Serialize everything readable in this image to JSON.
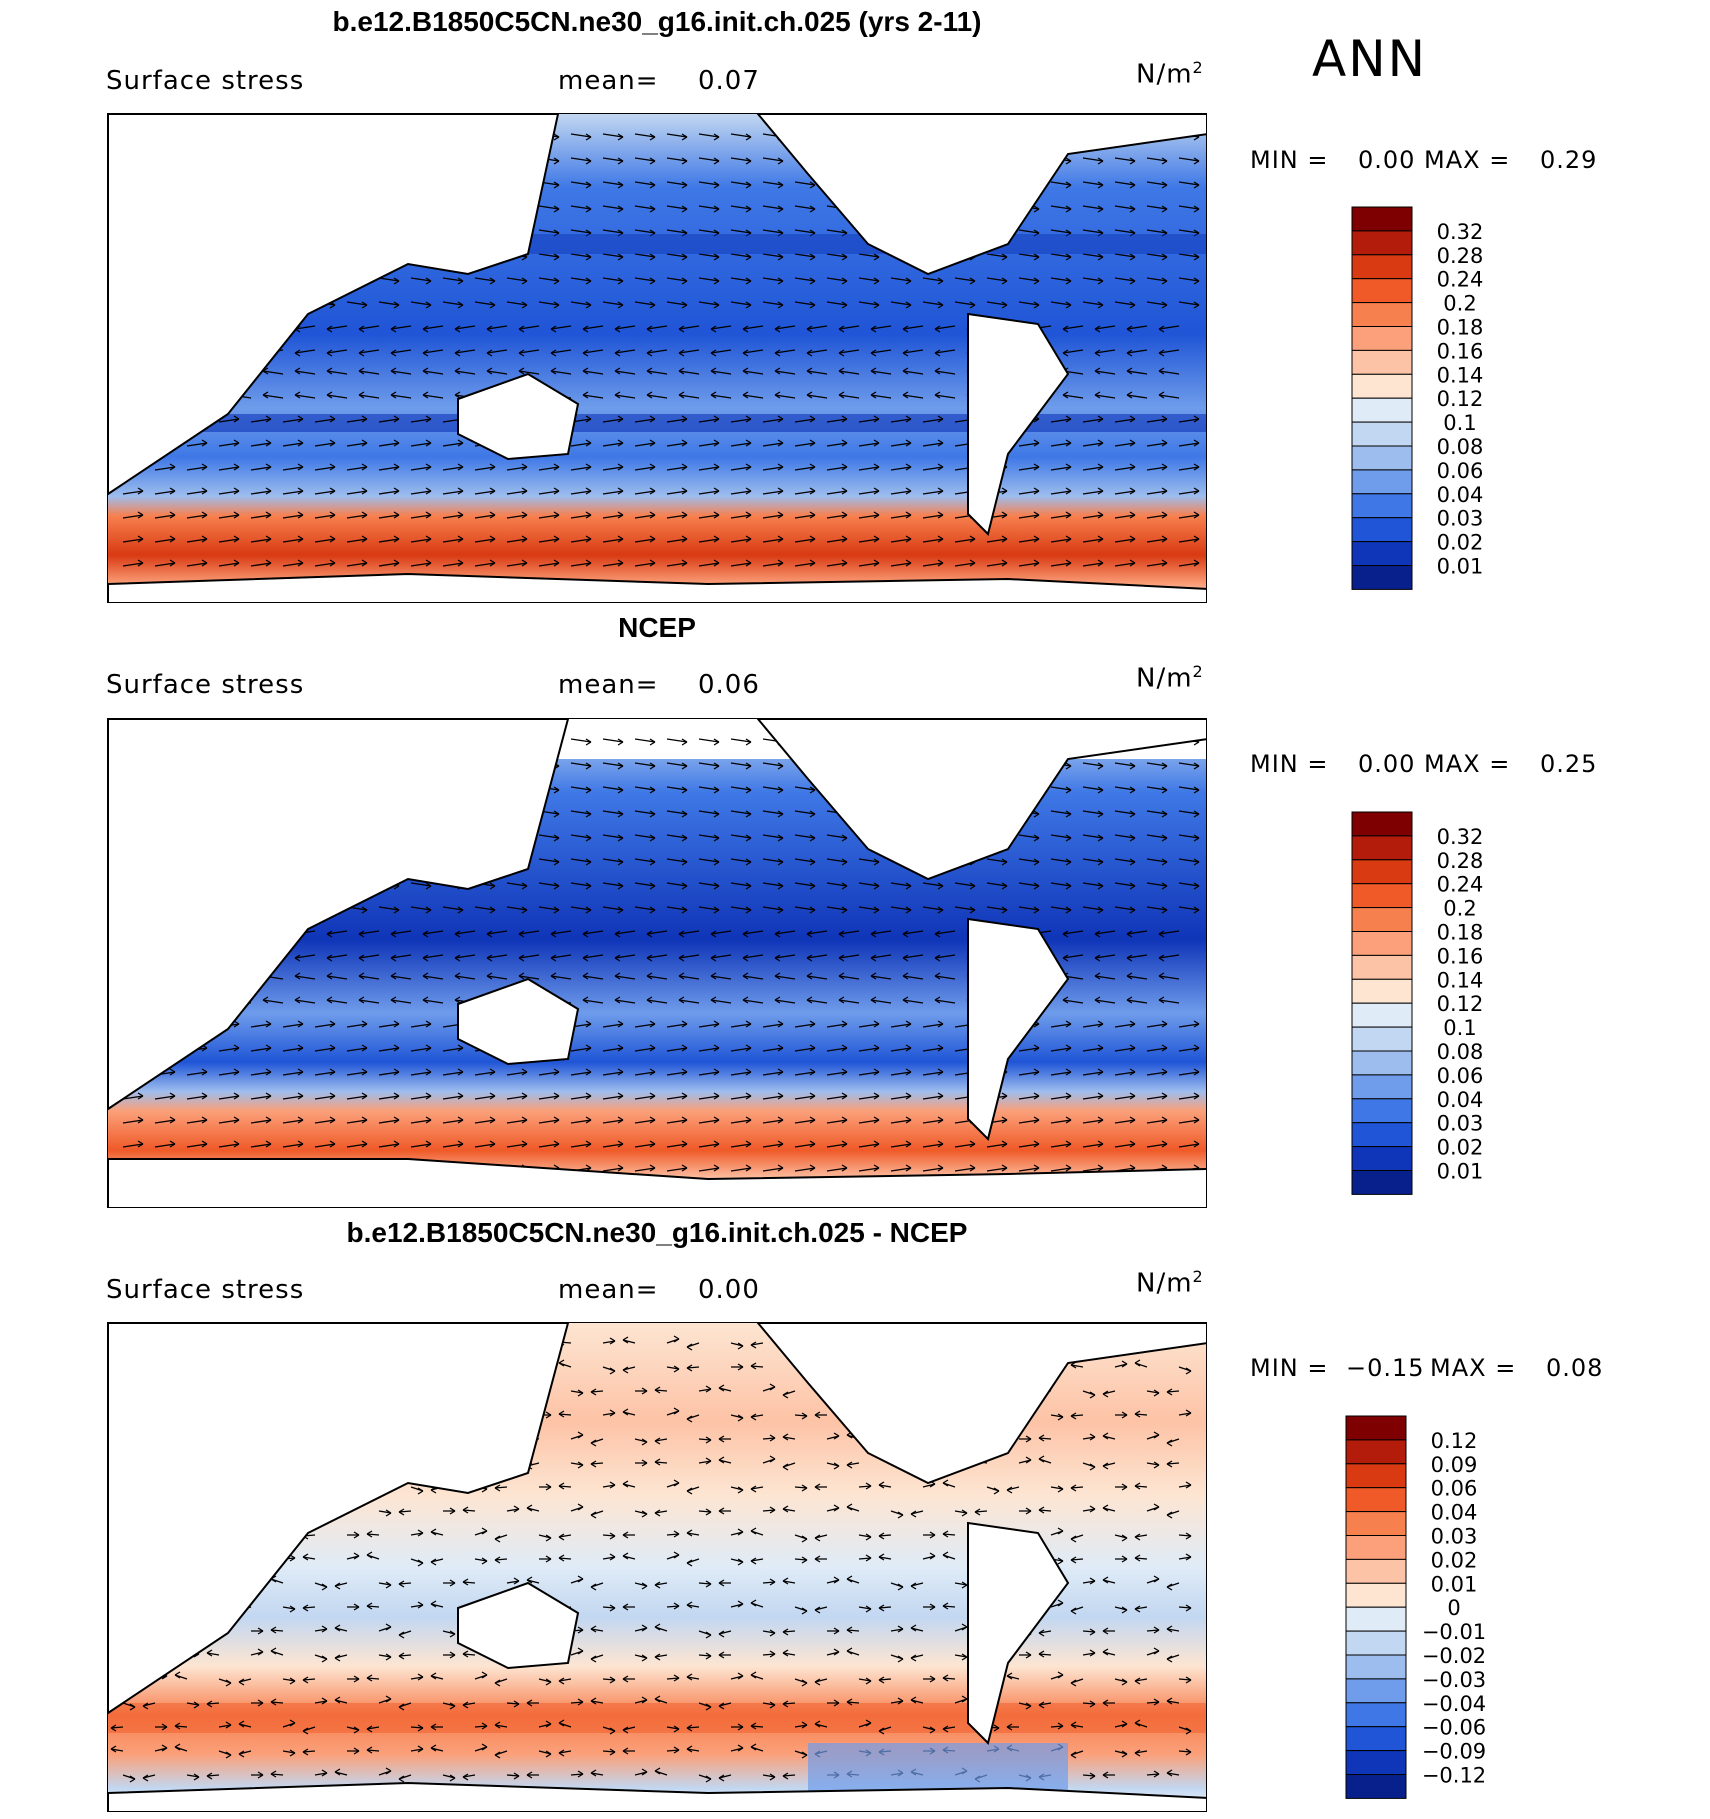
{
  "season": "ANN",
  "panels": [
    {
      "title": "b.e12.B1850C5CN.ne30_g16.init.ch.025 (yrs 2-11)",
      "variable": "Surface stress",
      "mean_label": "mean=",
      "mean_value": "0.07",
      "units_base": "N/m",
      "units_exp": "2",
      "min_label": "MIN =",
      "min_value": "0.00",
      "max_label": "MAX =",
      "max_value": "0.29",
      "colorbar": {
        "labels": [
          "0.32",
          "0.28",
          "0.24",
          "0.2",
          "0.18",
          "0.16",
          "0.14",
          "0.12",
          "0.1",
          "0.08",
          "0.06",
          "0.04",
          "0.03",
          "0.02",
          "0.01"
        ],
        "colors": [
          "#7f0000",
          "#b31b0a",
          "#d93a12",
          "#ef5a28",
          "#f7804f",
          "#fba07a",
          "#fdc3a6",
          "#fde5d2",
          "#dfebf7",
          "#c2d7f1",
          "#9dbdee",
          "#6f9ceb",
          "#3f78e6",
          "#1f55d6",
          "#0f35b8",
          "#08208c"
        ]
      }
    },
    {
      "title": "NCEP",
      "variable": "Surface stress",
      "mean_label": "mean=",
      "mean_value": "0.06",
      "units_base": "N/m",
      "units_exp": "2",
      "min_label": "MIN =",
      "min_value": "0.00",
      "max_label": "MAX =",
      "max_value": "0.25",
      "colorbar": {
        "labels": [
          "0.32",
          "0.28",
          "0.24",
          "0.2",
          "0.18",
          "0.16",
          "0.14",
          "0.12",
          "0.1",
          "0.08",
          "0.06",
          "0.04",
          "0.03",
          "0.02",
          "0.01"
        ],
        "colors": [
          "#7f0000",
          "#b31b0a",
          "#d93a12",
          "#ef5a28",
          "#f7804f",
          "#fba07a",
          "#fdc3a6",
          "#fde5d2",
          "#dfebf7",
          "#c2d7f1",
          "#9dbdee",
          "#6f9ceb",
          "#3f78e6",
          "#1f55d6",
          "#0f35b8",
          "#08208c"
        ]
      }
    },
    {
      "title": "b.e12.B1850C5CN.ne30_g16.init.ch.025 - NCEP",
      "variable": "Surface stress",
      "mean_label": "mean=",
      "mean_value": "0.00",
      "units_base": "N/m",
      "units_exp": "2",
      "min_label": "MIN =",
      "min_value": "−0.15",
      "max_label": "MAX =",
      "max_value": "0.08",
      "colorbar": {
        "labels": [
          "0.12",
          "0.09",
          "0.06",
          "0.04",
          "0.03",
          "0.02",
          "0.01",
          "0",
          "−0.01",
          "−0.02",
          "−0.03",
          "−0.04",
          "−0.06",
          "−0.09",
          "−0.12"
        ],
        "colors": [
          "#7f0000",
          "#b31b0a",
          "#d93a12",
          "#ef5a28",
          "#f7804f",
          "#fba07a",
          "#fdc3a6",
          "#fde5d2",
          "#dfebf7",
          "#c2d7f1",
          "#9dbdee",
          "#6f9ceb",
          "#3f78e6",
          "#1f55d6",
          "#0f35b8",
          "#08208c"
        ]
      }
    }
  ]
}
